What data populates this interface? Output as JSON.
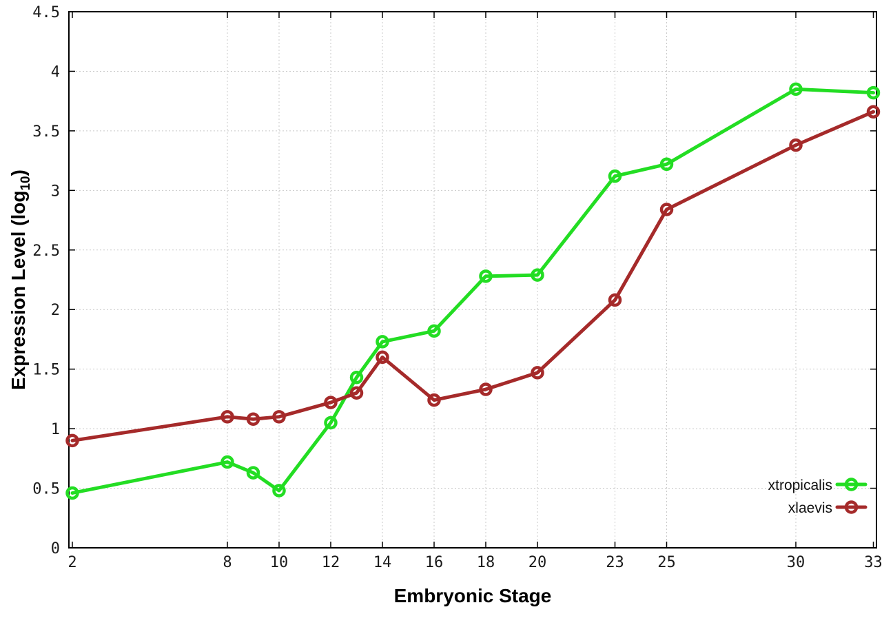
{
  "chart_data": {
    "type": "line",
    "title": "",
    "xlabel": "Embryonic Stage",
    "ylabel": "Expression Level (log10)",
    "ylabel_parts": {
      "main": "Expression Level (log",
      "sub": "10",
      "close": ")"
    },
    "x": [
      2,
      8,
      9,
      10,
      12,
      13,
      14,
      16,
      18,
      20,
      23,
      25,
      30,
      33
    ],
    "series": [
      {
        "name": "xtropicalis",
        "color": "#23dd23",
        "values": [
          0.46,
          0.72,
          0.63,
          0.48,
          1.05,
          1.43,
          1.73,
          1.82,
          2.28,
          2.29,
          3.12,
          3.22,
          3.85,
          3.82
        ]
      },
      {
        "name": "xlaevis",
        "color": "#a52a2a",
        "values": [
          0.9,
          1.1,
          1.08,
          1.1,
          1.22,
          1.3,
          1.6,
          1.24,
          1.33,
          1.47,
          2.08,
          2.84,
          3.38,
          3.66
        ]
      }
    ],
    "x_ticks": [
      2,
      8,
      10,
      12,
      14,
      16,
      18,
      20,
      23,
      25,
      30,
      33
    ],
    "y_ticks": [
      {
        "v": 0,
        "label": "0"
      },
      {
        "v": 0.5,
        "label": "0.5"
      },
      {
        "v": 1,
        "label": "1"
      },
      {
        "v": 1.5,
        "label": "1.5"
      },
      {
        "v": 2,
        "label": "2"
      },
      {
        "v": 2.5,
        "label": "2.5"
      },
      {
        "v": 3,
        "label": "3"
      },
      {
        "v": 3.5,
        "label": "3.5"
      },
      {
        "v": 4,
        "label": "4"
      },
      {
        "v": 4.5,
        "label": "4.5"
      }
    ],
    "xlim": [
      1.867,
      33.12
    ],
    "ylim": [
      0,
      4.5
    ],
    "grid": true,
    "legend_position": "inside-bottom-right",
    "colors": {
      "grid": "#c9c9c9",
      "border": "#000000",
      "tick_text": "#1a1a1a"
    }
  }
}
